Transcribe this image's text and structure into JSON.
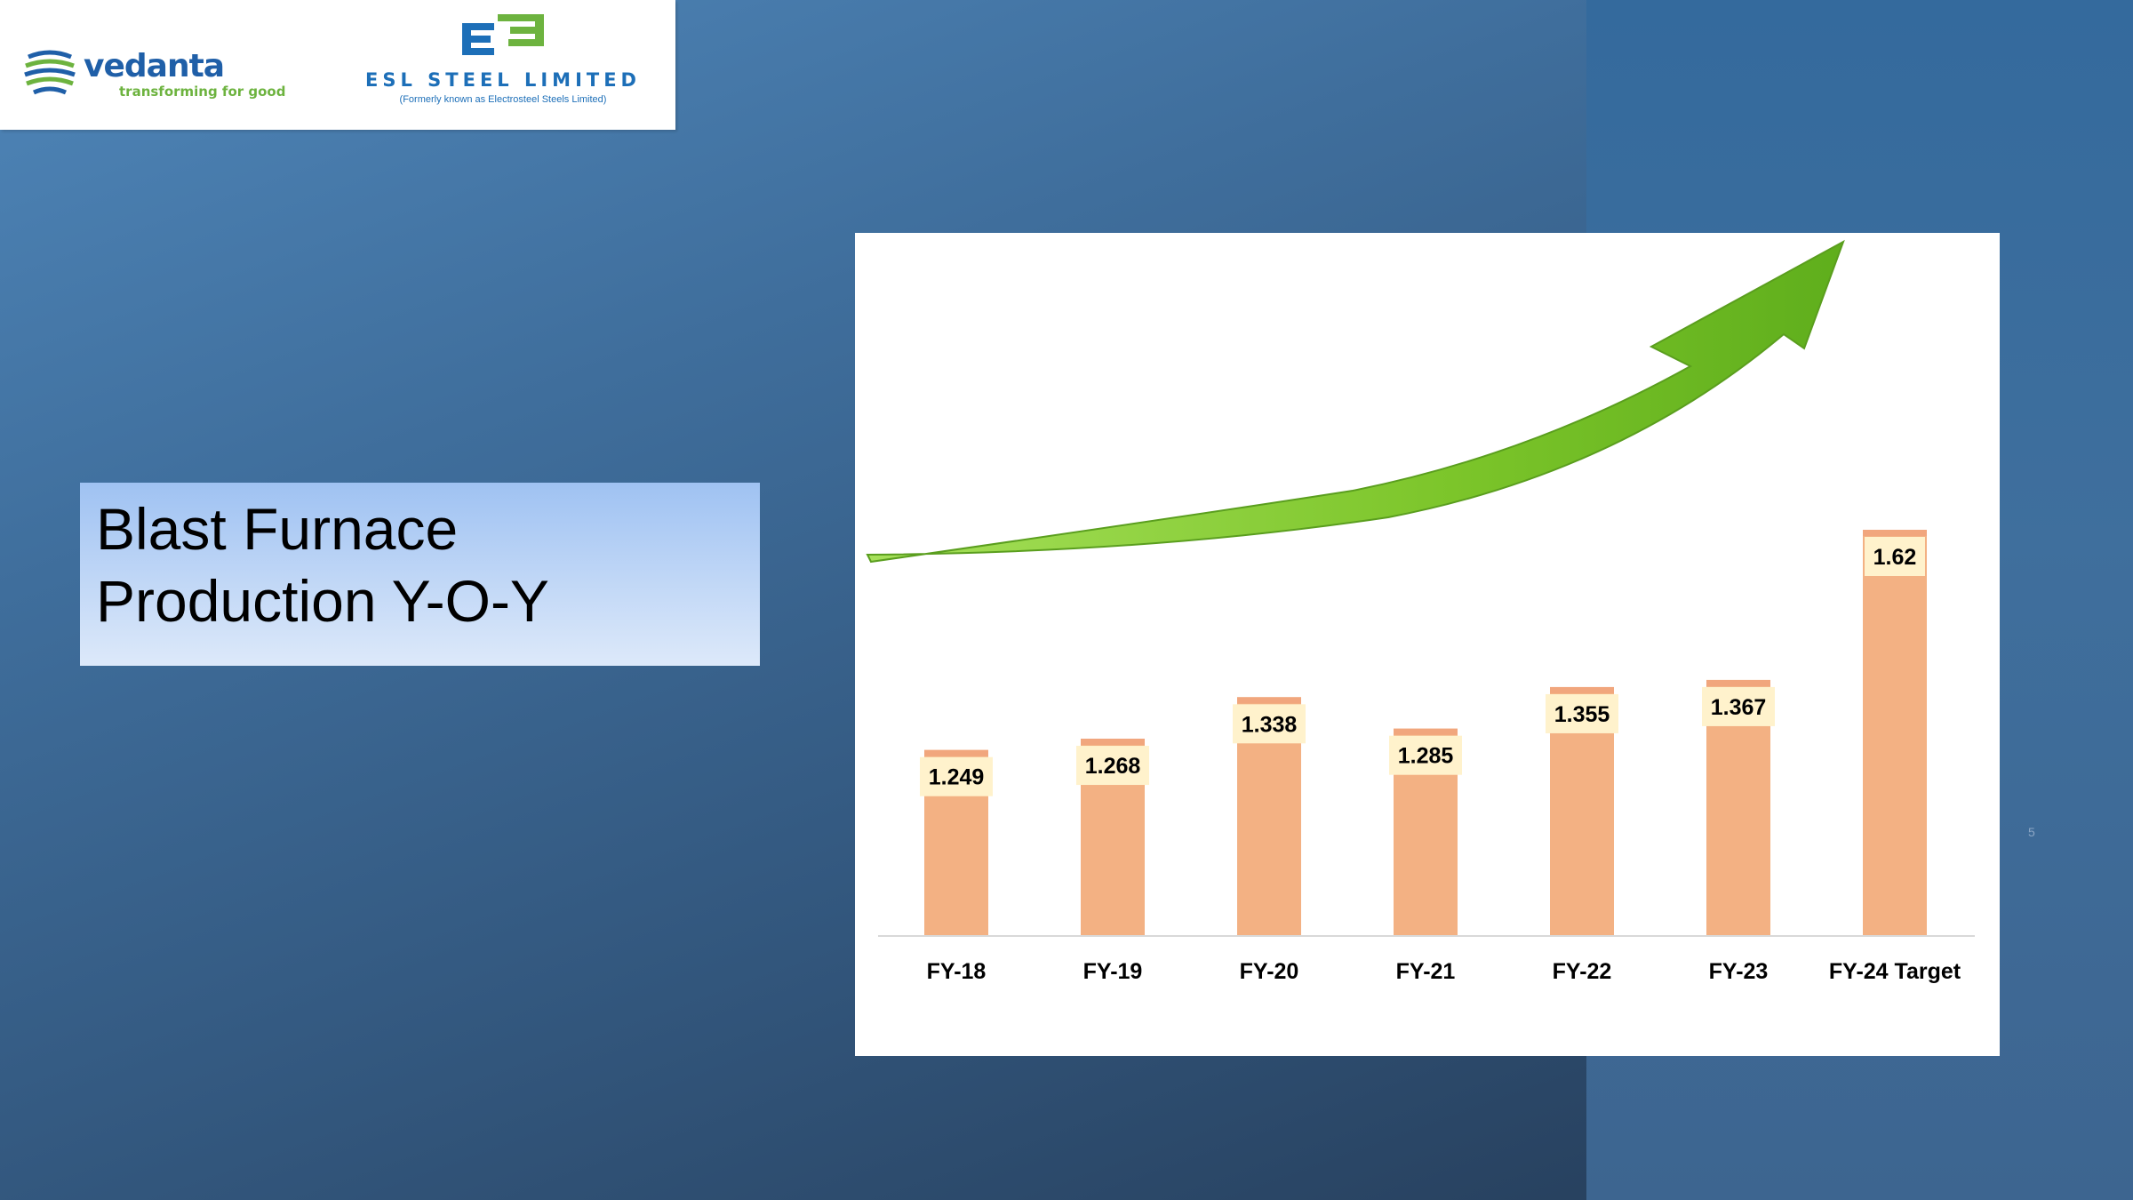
{
  "logos": {
    "vedanta": {
      "name": "vedanta",
      "tagline": "transforming for good"
    },
    "esl": {
      "name": "ESL STEEL LIMITED",
      "subtitle": "(Formerly known as Electrosteel Steels Limited)"
    }
  },
  "slide": {
    "title": "Blast Furnace Production Y-O-Y",
    "page_number": "5"
  },
  "colors": {
    "bar": "#f3b183",
    "bar_top": "#f1a67d",
    "label_bg": "#fff2cc",
    "arrow": "#7cc52a",
    "logo_blue": "#1d6fb8",
    "logo_green": "#6db33f"
  },
  "chart_data": {
    "type": "bar",
    "categories": [
      "FY-18",
      "FY-19",
      "FY-20",
      "FY-21",
      "FY-22",
      "FY-23",
      "FY-24 Target"
    ],
    "values": [
      1.249,
      1.268,
      1.338,
      1.285,
      1.355,
      1.367,
      1.62
    ],
    "data_labels": [
      "1.249",
      "1.268",
      "1.338",
      "1.285",
      "1.355",
      "1.367",
      "1.62"
    ],
    "title": "",
    "xlabel": "",
    "ylabel": "",
    "grid": false,
    "legend": "none",
    "decoration": "green-upward-arrow"
  }
}
